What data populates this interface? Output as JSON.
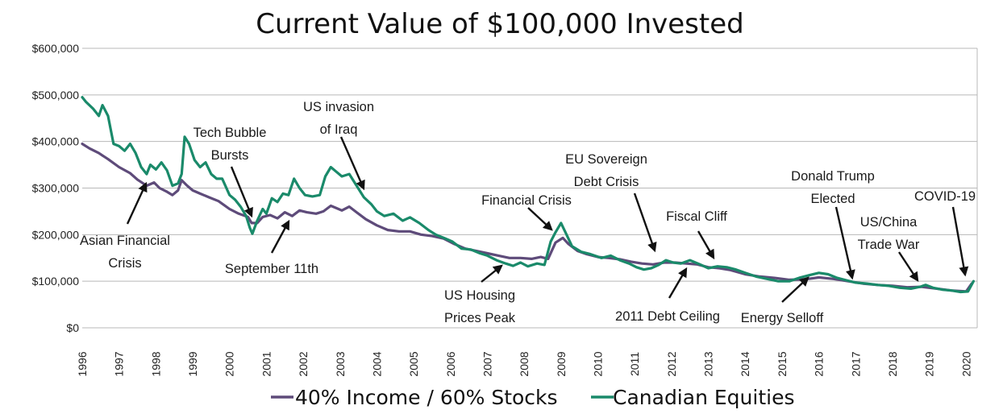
{
  "chart_data": {
    "type": "line",
    "title": "Current Value of $100,000 Invested",
    "xlabel": "",
    "ylabel": "",
    "ylim": [
      0,
      600000
    ],
    "xlim": [
      1996,
      2020.3
    ],
    "grid": true,
    "legend_position": "bottom",
    "y_ticks": [
      "$0",
      "$100,000",
      "$200,000",
      "$300,000",
      "$400,000",
      "$500,000",
      "$600,000"
    ],
    "x_ticks": [
      "1996",
      "1997",
      "1998",
      "1999",
      "2000",
      "2001",
      "2002",
      "2003",
      "2004",
      "2005",
      "2006",
      "2007",
      "2008",
      "2009",
      "2010",
      "2011",
      "2012",
      "2013",
      "2014",
      "2015",
      "2016",
      "2017",
      "2018",
      "2019",
      "2020"
    ],
    "series": [
      {
        "name": "40% Income / 60% Stocks",
        "color": "#5e4b7a",
        "points": [
          [
            1996.0,
            395000
          ],
          [
            1996.2,
            385000
          ],
          [
            1996.45,
            375000
          ],
          [
            1996.7,
            362000
          ],
          [
            1997.0,
            345000
          ],
          [
            1997.3,
            332000
          ],
          [
            1997.5,
            318000
          ],
          [
            1997.75,
            305000
          ],
          [
            1997.95,
            312000
          ],
          [
            1998.1,
            300000
          ],
          [
            1998.3,
            292000
          ],
          [
            1998.45,
            285000
          ],
          [
            1998.6,
            295000
          ],
          [
            1998.7,
            317000
          ],
          [
            1998.85,
            305000
          ],
          [
            1999.0,
            295000
          ],
          [
            1999.2,
            288000
          ],
          [
            1999.45,
            280000
          ],
          [
            1999.7,
            272000
          ],
          [
            2000.0,
            255000
          ],
          [
            2000.25,
            245000
          ],
          [
            2000.5,
            238000
          ],
          [
            2000.6,
            225000
          ],
          [
            2000.75,
            225000
          ],
          [
            2000.9,
            238000
          ],
          [
            2001.1,
            242000
          ],
          [
            2001.3,
            235000
          ],
          [
            2001.5,
            248000
          ],
          [
            2001.7,
            240000
          ],
          [
            2001.9,
            252000
          ],
          [
            2002.1,
            248000
          ],
          [
            2002.35,
            245000
          ],
          [
            2002.55,
            250000
          ],
          [
            2002.75,
            262000
          ],
          [
            2002.9,
            257000
          ],
          [
            2003.05,
            252000
          ],
          [
            2003.25,
            260000
          ],
          [
            2003.45,
            248000
          ],
          [
            2003.7,
            233000
          ],
          [
            2004.0,
            220000
          ],
          [
            2004.3,
            210000
          ],
          [
            2004.6,
            207000
          ],
          [
            2004.9,
            207000
          ],
          [
            2005.2,
            200000
          ],
          [
            2005.5,
            197000
          ],
          [
            2005.8,
            192000
          ],
          [
            2006.1,
            180000
          ],
          [
            2006.4,
            170000
          ],
          [
            2006.7,
            165000
          ],
          [
            2007.0,
            160000
          ],
          [
            2007.3,
            155000
          ],
          [
            2007.6,
            150000
          ],
          [
            2007.9,
            150000
          ],
          [
            2008.2,
            148000
          ],
          [
            2008.45,
            152000
          ],
          [
            2008.65,
            148000
          ],
          [
            2008.85,
            183000
          ],
          [
            2009.05,
            193000
          ],
          [
            2009.2,
            180000
          ],
          [
            2009.45,
            165000
          ],
          [
            2009.7,
            158000
          ],
          [
            2010.0,
            152000
          ],
          [
            2010.3,
            150000
          ],
          [
            2010.6,
            147000
          ],
          [
            2010.9,
            142000
          ],
          [
            2011.2,
            138000
          ],
          [
            2011.5,
            136000
          ],
          [
            2011.8,
            140000
          ],
          [
            2012.1,
            140000
          ],
          [
            2012.4,
            138000
          ],
          [
            2012.7,
            136000
          ],
          [
            2013.0,
            130000
          ],
          [
            2013.3,
            128000
          ],
          [
            2013.6,
            124000
          ],
          [
            2014.0,
            115000
          ],
          [
            2014.4,
            110000
          ],
          [
            2014.8,
            107000
          ],
          [
            2015.2,
            103000
          ],
          [
            2015.6,
            104000
          ],
          [
            2016.0,
            108000
          ],
          [
            2016.4,
            105000
          ],
          [
            2016.8,
            100000
          ],
          [
            2017.2,
            95000
          ],
          [
            2017.6,
            92000
          ],
          [
            2018.0,
            90000
          ],
          [
            2018.4,
            87000
          ],
          [
            2018.8,
            88000
          ],
          [
            2019.2,
            84000
          ],
          [
            2019.6,
            80000
          ],
          [
            2020.0,
            78000
          ],
          [
            2020.15,
            95000
          ]
        ]
      },
      {
        "name": "Canadian Equities",
        "color": "#1a8a6a",
        "points": [
          [
            1996.0,
            495000
          ],
          [
            1996.1,
            485000
          ],
          [
            1996.3,
            470000
          ],
          [
            1996.45,
            455000
          ],
          [
            1996.55,
            478000
          ],
          [
            1996.7,
            455000
          ],
          [
            1996.85,
            395000
          ],
          [
            1997.0,
            390000
          ],
          [
            1997.15,
            380000
          ],
          [
            1997.3,
            395000
          ],
          [
            1997.45,
            375000
          ],
          [
            1997.6,
            345000
          ],
          [
            1997.75,
            330000
          ],
          [
            1997.85,
            350000
          ],
          [
            1998.0,
            340000
          ],
          [
            1998.15,
            355000
          ],
          [
            1998.3,
            338000
          ],
          [
            1998.45,
            305000
          ],
          [
            1998.6,
            310000
          ],
          [
            1998.7,
            330000
          ],
          [
            1998.78,
            410000
          ],
          [
            1998.9,
            395000
          ],
          [
            1999.05,
            360000
          ],
          [
            1999.2,
            345000
          ],
          [
            1999.35,
            355000
          ],
          [
            1999.5,
            330000
          ],
          [
            1999.65,
            320000
          ],
          [
            1999.8,
            320000
          ],
          [
            2000.0,
            285000
          ],
          [
            2000.15,
            275000
          ],
          [
            2000.3,
            260000
          ],
          [
            2000.45,
            240000
          ],
          [
            2000.55,
            215000
          ],
          [
            2000.62,
            202000
          ],
          [
            2000.75,
            230000
          ],
          [
            2000.9,
            255000
          ],
          [
            2001.0,
            245000
          ],
          [
            2001.15,
            278000
          ],
          [
            2001.3,
            270000
          ],
          [
            2001.45,
            288000
          ],
          [
            2001.6,
            285000
          ],
          [
            2001.75,
            320000
          ],
          [
            2001.9,
            300000
          ],
          [
            2002.05,
            285000
          ],
          [
            2002.25,
            282000
          ],
          [
            2002.45,
            285000
          ],
          [
            2002.6,
            325000
          ],
          [
            2002.75,
            345000
          ],
          [
            2002.9,
            335000
          ],
          [
            2003.05,
            325000
          ],
          [
            2003.25,
            330000
          ],
          [
            2003.45,
            305000
          ],
          [
            2003.65,
            280000
          ],
          [
            2003.85,
            265000
          ],
          [
            2004.0,
            250000
          ],
          [
            2004.2,
            240000
          ],
          [
            2004.45,
            245000
          ],
          [
            2004.7,
            230000
          ],
          [
            2004.9,
            237000
          ],
          [
            2005.15,
            225000
          ],
          [
            2005.4,
            210000
          ],
          [
            2005.6,
            200000
          ],
          [
            2005.85,
            192000
          ],
          [
            2006.05,
            185000
          ],
          [
            2006.3,
            170000
          ],
          [
            2006.55,
            168000
          ],
          [
            2006.8,
            160000
          ],
          [
            2007.0,
            155000
          ],
          [
            2007.25,
            145000
          ],
          [
            2007.5,
            138000
          ],
          [
            2007.7,
            133000
          ],
          [
            2007.9,
            140000
          ],
          [
            2008.1,
            132000
          ],
          [
            2008.35,
            138000
          ],
          [
            2008.55,
            135000
          ],
          [
            2008.72,
            185000
          ],
          [
            2008.85,
            205000
          ],
          [
            2009.0,
            225000
          ],
          [
            2009.12,
            205000
          ],
          [
            2009.3,
            175000
          ],
          [
            2009.55,
            163000
          ],
          [
            2009.8,
            158000
          ],
          [
            2010.1,
            150000
          ],
          [
            2010.35,
            155000
          ],
          [
            2010.6,
            145000
          ],
          [
            2010.85,
            138000
          ],
          [
            2011.05,
            130000
          ],
          [
            2011.25,
            125000
          ],
          [
            2011.45,
            128000
          ],
          [
            2011.65,
            135000
          ],
          [
            2011.85,
            145000
          ],
          [
            2012.05,
            140000
          ],
          [
            2012.25,
            138000
          ],
          [
            2012.5,
            145000
          ],
          [
            2012.75,
            137000
          ],
          [
            2013.0,
            128000
          ],
          [
            2013.25,
            132000
          ],
          [
            2013.5,
            130000
          ],
          [
            2013.75,
            125000
          ],
          [
            2014.0,
            118000
          ],
          [
            2014.3,
            110000
          ],
          [
            2014.6,
            105000
          ],
          [
            2014.9,
            100000
          ],
          [
            2015.2,
            100000
          ],
          [
            2015.5,
            108000
          ],
          [
            2015.75,
            113000
          ],
          [
            2016.0,
            118000
          ],
          [
            2016.25,
            115000
          ],
          [
            2016.5,
            107000
          ],
          [
            2016.75,
            102000
          ],
          [
            2017.0,
            97000
          ],
          [
            2017.3,
            95000
          ],
          [
            2017.6,
            92000
          ],
          [
            2017.9,
            90000
          ],
          [
            2018.2,
            86000
          ],
          [
            2018.5,
            84000
          ],
          [
            2018.75,
            88000
          ],
          [
            2018.9,
            92000
          ],
          [
            2019.1,
            86000
          ],
          [
            2019.35,
            82000
          ],
          [
            2019.6,
            80000
          ],
          [
            2019.85,
            77000
          ],
          [
            2020.05,
            78000
          ],
          [
            2020.2,
            100000
          ]
        ]
      }
    ],
    "annotations": [
      {
        "lines": [
          "Asian Financial",
          "Crisis"
        ]
      },
      {
        "lines": [
          "Tech Bubble",
          "Bursts"
        ]
      },
      {
        "lines": [
          "September 11th"
        ]
      },
      {
        "lines": [
          "US invasion",
          "of Iraq"
        ]
      },
      {
        "lines": [
          "US Housing",
          "Prices Peak"
        ]
      },
      {
        "lines": [
          "Financial Crisis"
        ]
      },
      {
        "lines": [
          "EU Sovereign",
          "Debt Crisis"
        ]
      },
      {
        "lines": [
          "2011 Debt Ceiling"
        ]
      },
      {
        "lines": [
          "Fiscal Cliff"
        ]
      },
      {
        "lines": [
          "Energy Selloff"
        ]
      },
      {
        "lines": [
          "Donald Trump",
          "Elected"
        ]
      },
      {
        "lines": [
          "US/China",
          "Trade War"
        ]
      },
      {
        "lines": [
          "COVID-19"
        ]
      }
    ]
  }
}
